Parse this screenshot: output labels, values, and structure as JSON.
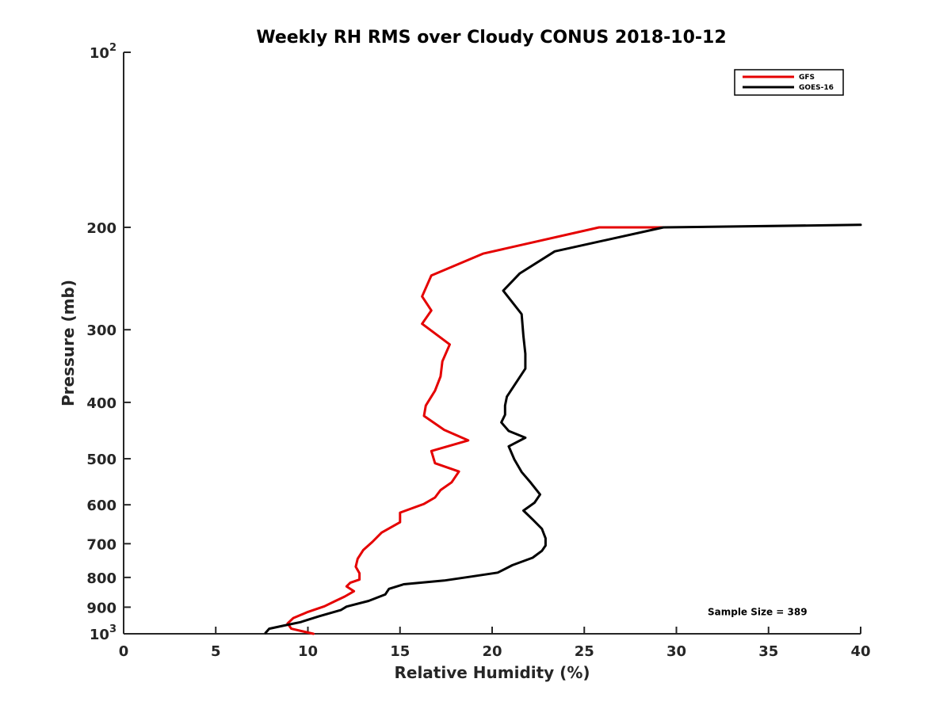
{
  "chart_data": {
    "type": "line",
    "title": "Weekly RH RMS over Cloudy CONUS 2018-10-12",
    "xlabel": "Relative Humidity (%)",
    "ylabel": "Pressure (mb)",
    "xlim": [
      0,
      40
    ],
    "ylim": [
      1000,
      100
    ],
    "yscale": "log",
    "y_reversed": true,
    "grid": false,
    "legend_position": "top-right",
    "x_ticks": [
      {
        "value": 0,
        "label": "0"
      },
      {
        "value": 5,
        "label": "5"
      },
      {
        "value": 10,
        "label": "10"
      },
      {
        "value": 15,
        "label": "15"
      },
      {
        "value": 20,
        "label": "20"
      },
      {
        "value": 25,
        "label": "25"
      },
      {
        "value": 30,
        "label": "30"
      },
      {
        "value": 35,
        "label": "35"
      },
      {
        "value": 40,
        "label": "40"
      }
    ],
    "y_ticks": [
      {
        "value": 100,
        "base": "10",
        "exp": "2"
      },
      {
        "value": 200,
        "base": "200",
        "exp": ""
      },
      {
        "value": 300,
        "base": "300",
        "exp": ""
      },
      {
        "value": 400,
        "base": "400",
        "exp": ""
      },
      {
        "value": 500,
        "base": "500",
        "exp": ""
      },
      {
        "value": 600,
        "base": "600",
        "exp": ""
      },
      {
        "value": 700,
        "base": "700",
        "exp": ""
      },
      {
        "value": 800,
        "base": "800",
        "exp": ""
      },
      {
        "value": 900,
        "base": "900",
        "exp": ""
      },
      {
        "value": 1000,
        "base": "10",
        "exp": "3"
      }
    ],
    "series": [
      {
        "name": "GFS",
        "color": "#e50000",
        "x": [
          29.3,
          25.8,
          19.5,
          16.7,
          16.2,
          16.7,
          16.2,
          17.7,
          17.3,
          17.2,
          16.9,
          16.4,
          16.3,
          17.4,
          18.7,
          16.7,
          16.9,
          18.2,
          17.8,
          17.2,
          16.9,
          16.3,
          15.0,
          15.0,
          14.0,
          13.5,
          13.0,
          12.7,
          12.6,
          12.8,
          12.8,
          12.3,
          12.1,
          12.5,
          12.0,
          11.5,
          10.9,
          10.0,
          9.2,
          8.9,
          9.1,
          10.3
        ],
        "y": [
          200,
          200,
          222,
          242,
          263,
          278,
          293,
          318,
          340,
          361,
          382,
          405,
          422,
          446,
          465,
          485,
          509,
          526,
          549,
          566,
          583,
          598,
          619,
          643,
          670,
          695,
          718,
          743,
          767,
          787,
          807,
          817,
          829,
          845,
          863,
          878,
          897,
          917,
          940,
          960,
          980,
          1000
        ]
      },
      {
        "name": "GOES-16",
        "color": "#000000",
        "x": [
          40,
          29.3,
          23.4,
          21.5,
          20.6,
          21.6,
          21.7,
          21.8,
          21.8,
          21.3,
          20.8,
          20.7,
          20.7,
          20.5,
          20.9,
          21.8,
          20.9,
          21.2,
          21.6,
          22.1,
          22.6,
          22.3,
          21.7,
          22.2,
          22.7,
          22.9,
          22.9,
          22.7,
          22.2,
          21.1,
          20.3,
          18.9,
          17.4,
          15.2,
          14.4,
          14.2,
          13.3,
          12.1,
          11.8,
          10.6,
          9.6,
          8.7,
          7.9,
          7.7
        ],
        "y": [
          198,
          200,
          220,
          240,
          257,
          282,
          308,
          330,
          350,
          370,
          391,
          405,
          420,
          433,
          448,
          460,
          476,
          501,
          527,
          550,
          576,
          595,
          614,
          636,
          660,
          685,
          705,
          720,
          740,
          762,
          785,
          797,
          810,
          822,
          837,
          856,
          878,
          898,
          910,
          933,
          955,
          968,
          980,
          997
        ]
      }
    ],
    "annotations": [
      {
        "text": "Sample Size = 389",
        "x": 34.4,
        "y": 917
      }
    ]
  }
}
